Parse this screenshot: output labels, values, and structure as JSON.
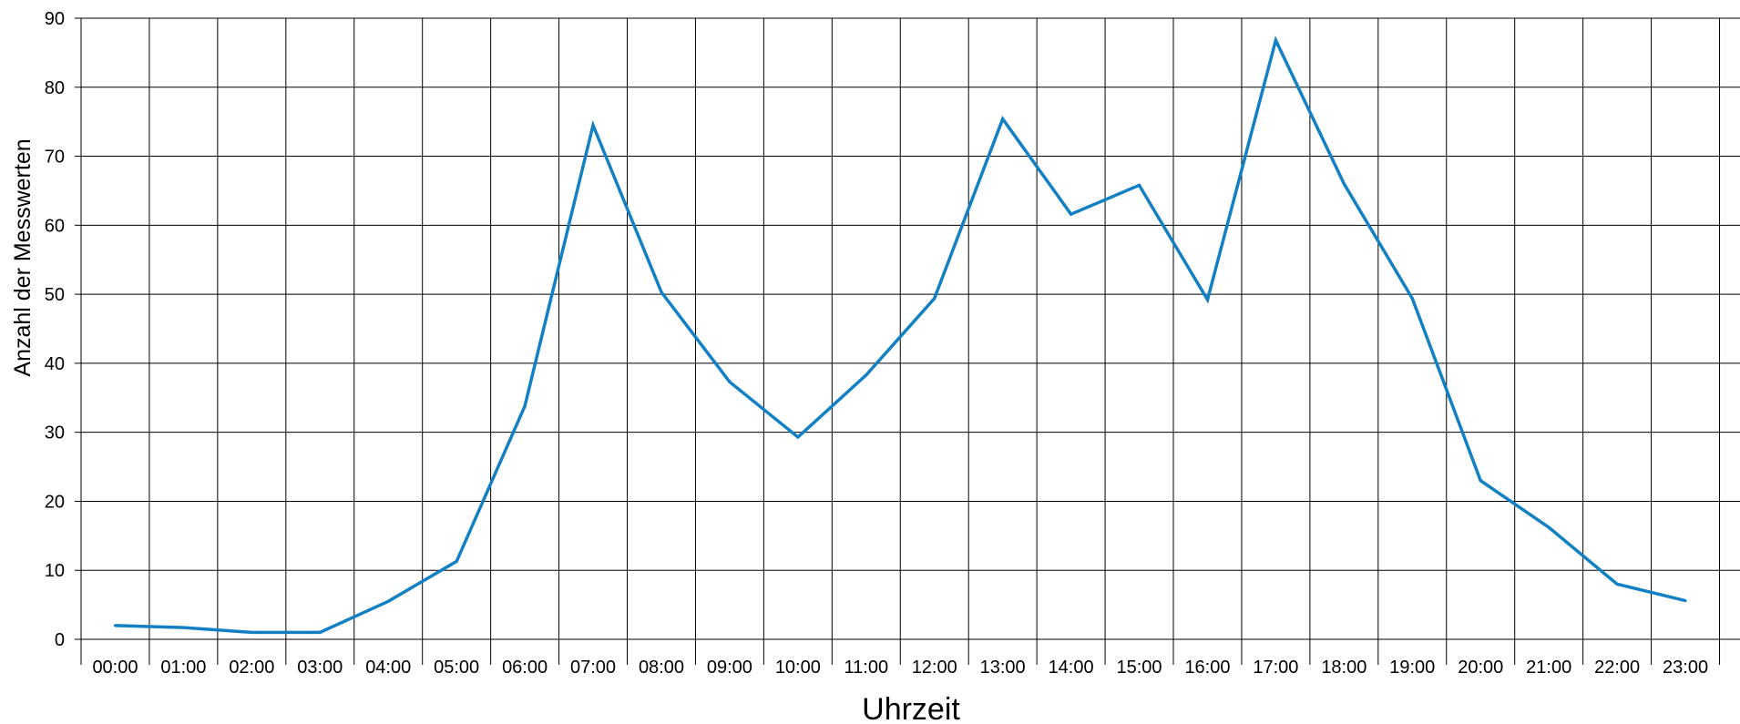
{
  "chart_data": {
    "type": "line",
    "xlabel": "Uhrzeit",
    "ylabel": "Anzahl der Messwerten",
    "categories": [
      "00:00",
      "01:00",
      "02:00",
      "03:00",
      "04:00",
      "05:00",
      "06:00",
      "07:00",
      "08:00",
      "09:00",
      "10:00",
      "11:00",
      "12:00",
      "13:00",
      "14:00",
      "15:00",
      "16:00",
      "17:00",
      "18:00",
      "19:00",
      "20:00",
      "21:00",
      "22:00",
      "23:00"
    ],
    "series": [
      {
        "values": [
          2,
          1.7,
          1,
          1,
          5.5,
          11.3,
          33.8,
          74.5,
          50.3,
          37.3,
          29.3,
          38.3,
          49.4,
          75.4,
          61.6,
          65.8,
          49.2,
          86.8,
          66.0,
          49.4,
          23.0,
          16.2,
          8.0,
          5.6
        ],
        "color": "#1380C4"
      }
    ],
    "ylim": [
      0,
      90
    ],
    "yticks": [
      0,
      10,
      20,
      30,
      40,
      50,
      60,
      70,
      80,
      90
    ],
    "grid": true,
    "gridColor": "#000000",
    "legend": "none"
  }
}
